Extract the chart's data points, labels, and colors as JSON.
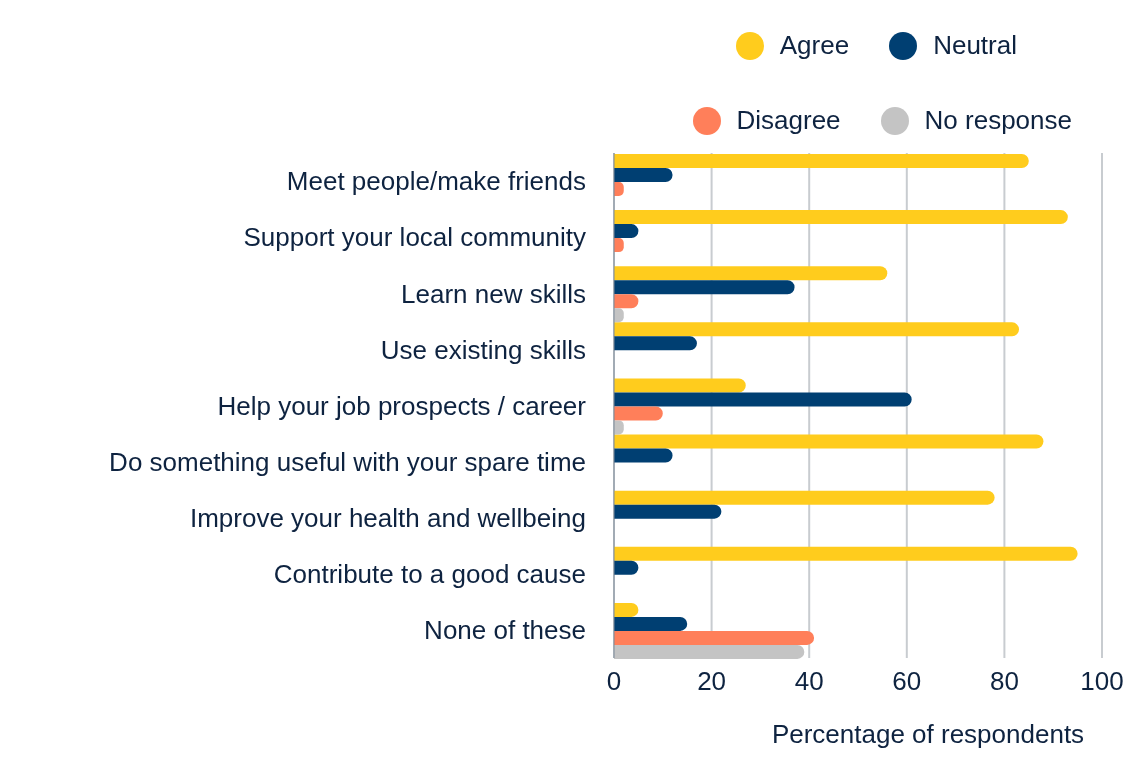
{
  "chart_data": {
    "type": "bar",
    "orientation": "horizontal",
    "xlabel": "Percentage of respondents",
    "categories": [
      "Meet people/make friends",
      "Support your local community",
      "Learn new skills",
      "Use existing skills",
      "Help your job prospects / career",
      "Do something useful with your spare time",
      "Improve your health and wellbeing",
      "Contribute to a good cause",
      "None of these"
    ],
    "series": [
      {
        "name": "Agree",
        "color": "#ffcc1d",
        "values": [
          85,
          93,
          56,
          83,
          27,
          88,
          78,
          95,
          5
        ]
      },
      {
        "name": "Neutral",
        "color": "#003f72",
        "values": [
          12,
          5,
          37,
          17,
          61,
          12,
          22,
          5,
          15
        ]
      },
      {
        "name": "Disagree",
        "color": "#ff7f5a",
        "values": [
          2,
          2,
          5,
          0,
          10,
          0,
          0,
          0,
          41
        ]
      },
      {
        "name": "No response",
        "color": "#c4c4c4",
        "values": [
          0,
          0,
          2,
          0,
          2,
          0,
          0,
          0,
          39
        ]
      }
    ],
    "xlim": [
      0,
      100
    ],
    "xticks": [
      0,
      20,
      40,
      60,
      80,
      100
    ],
    "grid": "x",
    "legend": "top"
  }
}
